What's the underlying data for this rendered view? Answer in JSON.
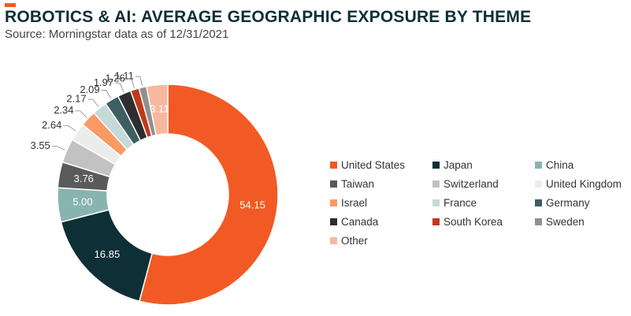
{
  "header": {
    "title": "ROBOTICS & AI: AVERAGE GEOGRAPHIC EXPOSURE BY THEME",
    "subtitle": "Source: Morningstar data as of 12/31/2021"
  },
  "colors": {
    "title": "#0e2f36",
    "subtitle": "#444444",
    "accent": "#f15a24"
  },
  "chart_data": {
    "type": "pie",
    "variant": "donut",
    "title": "ROBOTICS & AI: AVERAGE GEOGRAPHIC EXPOSURE BY THEME",
    "legend_position": "right",
    "categories": [
      "United States",
      "Japan",
      "China",
      "Taiwan",
      "Switzerland",
      "United Kingdom",
      "Israel",
      "France",
      "Germany",
      "Canada",
      "South Korea",
      "Sweden",
      "Other"
    ],
    "values": [
      54.15,
      16.85,
      5.0,
      3.76,
      3.55,
      2.64,
      2.34,
      2.17,
      2.09,
      1.97,
      1.26,
      1.11,
      3.11
    ],
    "value_labels": [
      "54.15",
      "16.85",
      "5.00",
      "3.76",
      "3.55",
      "2.64",
      "2.34",
      "2.17",
      "2.09",
      "1.97",
      "1.26",
      "1.11",
      "3.11"
    ],
    "colors": [
      "#f15a24",
      "#0e2f36",
      "#88b4b0",
      "#5a5a5a",
      "#c2c2c2",
      "#ececec",
      "#f89a64",
      "#c5dad8",
      "#3d5e63",
      "#2e2e2e",
      "#c0391b",
      "#909090",
      "#f7b89f"
    ]
  }
}
